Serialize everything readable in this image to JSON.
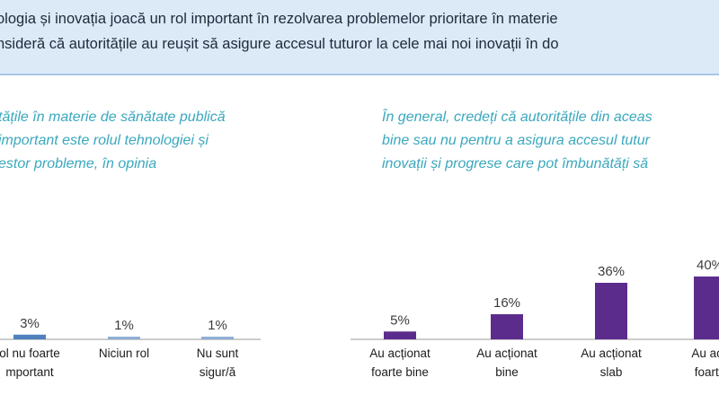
{
  "banner": {
    "line1": "ologia și inovația joacă un rol important în rezolvarea problemelor prioritare în materie",
    "line2": "nsideră că autoritățile au reușit să asigure accesul tuturor la cele mai noi inovații în do"
  },
  "questions": {
    "left": [
      "tățile în materie de sănătate publică",
      "important este rolul tehnologiei și",
      "estor probleme, în opinia"
    ],
    "right": [
      "În general, credeți că autoritățile din aceas",
      "bine sau nu pentru a asigura accesul tutur",
      "inovații și progrese care pot îmbunătăți să"
    ]
  },
  "colors": {
    "banner_bg": "#dce9f7",
    "question_text": "#3aa8bd",
    "left_bar": "#4f81bd",
    "left_bar_small": "#8eaed6",
    "right_bar": "#5b2c8c",
    "axis": "#9a9a9a"
  },
  "chart_data": [
    {
      "type": "bar",
      "categories": [
        [
          "ol nu foarte",
          "mportant"
        ],
        [
          "Niciun rol"
        ],
        [
          "Nu sunt",
          "sigur/ă"
        ]
      ],
      "values": [
        3,
        1,
        1
      ],
      "value_labels": [
        "3%",
        "1%",
        "1%"
      ],
      "value_unit": "%"
    },
    {
      "type": "bar",
      "categories": [
        [
          "Au acționat",
          "foarte bine"
        ],
        [
          "Au acționat",
          "bine"
        ],
        [
          "Au acționat",
          "slab"
        ],
        [
          "Au acți",
          "foarte"
        ]
      ],
      "values": [
        5,
        16,
        36,
        40
      ],
      "value_labels": [
        "5%",
        "16%",
        "36%",
        "40%"
      ],
      "value_unit": "%"
    }
  ]
}
